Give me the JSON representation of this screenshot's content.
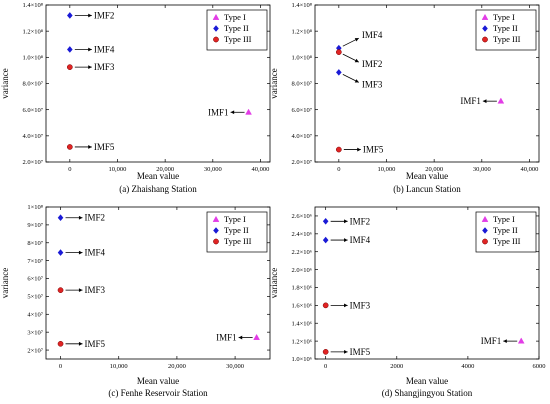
{
  "chart_data": [
    {
      "type": "scatter",
      "caption": "(a) Zhaishang Station",
      "xlabel": "Mean value",
      "ylabel": "variance",
      "xlim": [
        -5000,
        42000
      ],
      "ylim": [
        20000000,
        140000000
      ],
      "xticks": [
        0,
        10000,
        20000,
        30000,
        40000
      ],
      "xtick_labels": [
        "0",
        "10,000",
        "20,000",
        "30,000",
        "40,000"
      ],
      "yticks": [
        20000000,
        40000000,
        60000000,
        80000000,
        100000000,
        120000000,
        140000000
      ],
      "ytick_labels": [
        "2.0×10⁷",
        "4.0×10⁷",
        "6.0×10⁷",
        "8.0×10⁷",
        "1.0×10⁸",
        "1.2×10⁸",
        "1.4×10⁸"
      ],
      "legend": [
        "Type I",
        "Type II",
        "Type III"
      ],
      "legend_position": "top-right",
      "points": [
        {
          "label": "IMF2",
          "type": "Type II",
          "x": 0,
          "y": 132000000,
          "side": "right"
        },
        {
          "label": "IMF4",
          "type": "Type II",
          "x": 0,
          "y": 106000000,
          "side": "right"
        },
        {
          "label": "IMF3",
          "type": "Type III",
          "x": 0,
          "y": 92500000,
          "side": "right"
        },
        {
          "label": "IMF1",
          "type": "Type I",
          "x": 37500,
          "y": 58000000,
          "side": "left"
        },
        {
          "label": "IMF5",
          "type": "Type III",
          "x": 0,
          "y": 31500000,
          "side": "right"
        }
      ]
    },
    {
      "type": "scatter",
      "caption": "(b) Lancun Station",
      "xlabel": "Mean value",
      "ylabel": "variance",
      "xlim": [
        -5000,
        42000
      ],
      "ylim": [
        20000000,
        140000000
      ],
      "xticks": [
        0,
        10000,
        20000,
        30000,
        40000
      ],
      "xtick_labels": [
        "0",
        "10,000",
        "20,000",
        "30,000",
        "40,000"
      ],
      "yticks": [
        20000000,
        40000000,
        60000000,
        80000000,
        100000000,
        120000000,
        140000000
      ],
      "ytick_labels": [
        "2.0×10⁷",
        "4.0×10⁷",
        "6.0×10⁷",
        "8.0×10⁷",
        "1.0×10⁸",
        "1.2×10⁸",
        "1.4×10⁸"
      ],
      "legend": [
        "Type I",
        "Type II",
        "Type III"
      ],
      "legend_position": "top-right",
      "points": [
        {
          "label": "IMF4",
          "type": "Type II",
          "x": 0,
          "y": 107000000,
          "side": "up-right"
        },
        {
          "label": "IMF2",
          "type": "Type III",
          "x": 0,
          "y": 104000000,
          "side": "down-right"
        },
        {
          "label": "IMF3",
          "type": "Type II",
          "x": 0,
          "y": 88500000,
          "side": "down-right"
        },
        {
          "label": "IMF1",
          "type": "Type I",
          "x": 34000,
          "y": 66500000,
          "side": "left"
        },
        {
          "label": "IMF5",
          "type": "Type III",
          "x": 0,
          "y": 29500000,
          "side": "right"
        }
      ]
    },
    {
      "type": "scatter",
      "caption": "(c) Fenhe Reservoir Station",
      "xlabel": "Mean value",
      "ylabel": "variance",
      "xlim": [
        -2500,
        36000
      ],
      "ylim": [
        15000000,
        100000000
      ],
      "xticks": [
        0,
        10000,
        20000,
        30000
      ],
      "xtick_labels": [
        "0",
        "10,000",
        "20,000",
        "30,000"
      ],
      "yticks": [
        20000000,
        30000000,
        40000000,
        50000000,
        60000000,
        70000000,
        80000000,
        90000000,
        100000000
      ],
      "ytick_labels": [
        "2×10⁷",
        "3×10⁷",
        "4×10⁷",
        "5×10⁷",
        "6×10⁷",
        "7×10⁷",
        "8×10⁷",
        "9×10⁷",
        "1×10⁸"
      ],
      "legend": [
        "Type I",
        "Type II",
        "Type III"
      ],
      "legend_position": "top-right",
      "points": [
        {
          "label": "IMF2",
          "type": "Type II",
          "x": 0,
          "y": 94000000,
          "side": "right"
        },
        {
          "label": "IMF4",
          "type": "Type II",
          "x": 0,
          "y": 74500000,
          "side": "right"
        },
        {
          "label": "IMF3",
          "type": "Type III",
          "x": 0,
          "y": 53500000,
          "side": "right"
        },
        {
          "label": "IMF1",
          "type": "Type I",
          "x": 33700,
          "y": 27000000,
          "side": "left"
        },
        {
          "label": "IMF5",
          "type": "Type III",
          "x": 0,
          "y": 23500000,
          "side": "right"
        }
      ]
    },
    {
      "type": "scatter",
      "caption": "(d) Shangjingyou Station",
      "xlabel": "Mean value",
      "ylabel": "variance",
      "xlim": [
        -300,
        6000
      ],
      "ylim": [
        1000000,
        2700000
      ],
      "xticks": [
        0,
        2000,
        4000,
        6000
      ],
      "xtick_labels": [
        "0",
        "2000",
        "4000",
        "6000"
      ],
      "yticks": [
        1000000,
        1200000,
        1400000,
        1600000,
        1800000,
        2000000,
        2200000,
        2400000,
        2600000
      ],
      "ytick_labels": [
        "1.0×10⁶",
        "1.2×10⁶",
        "1.4×10⁶",
        "1.6×10⁶",
        "1.8×10⁶",
        "2.0×10⁶",
        "2.2×10⁶",
        "2.4×10⁶",
        "2.6×10⁶"
      ],
      "legend": [
        "Type I",
        "Type II",
        "Type III"
      ],
      "legend_position": "top-right",
      "points": [
        {
          "label": "IMF2",
          "type": "Type II",
          "x": 0,
          "y": 2540000,
          "side": "right"
        },
        {
          "label": "IMF4",
          "type": "Type II",
          "x": 0,
          "y": 2330000,
          "side": "right"
        },
        {
          "label": "IMF3",
          "type": "Type III",
          "x": 0,
          "y": 1600000,
          "side": "right"
        },
        {
          "label": "IMF1",
          "type": "Type I",
          "x": 5500,
          "y": 1200000,
          "side": "left"
        },
        {
          "label": "IMF5",
          "type": "Type III",
          "x": 0,
          "y": 1080000,
          "side": "right"
        }
      ]
    }
  ],
  "colors": {
    "Type I": "#e23ce6",
    "Type II": "#1a1ad6",
    "Type III": "#e02424"
  }
}
